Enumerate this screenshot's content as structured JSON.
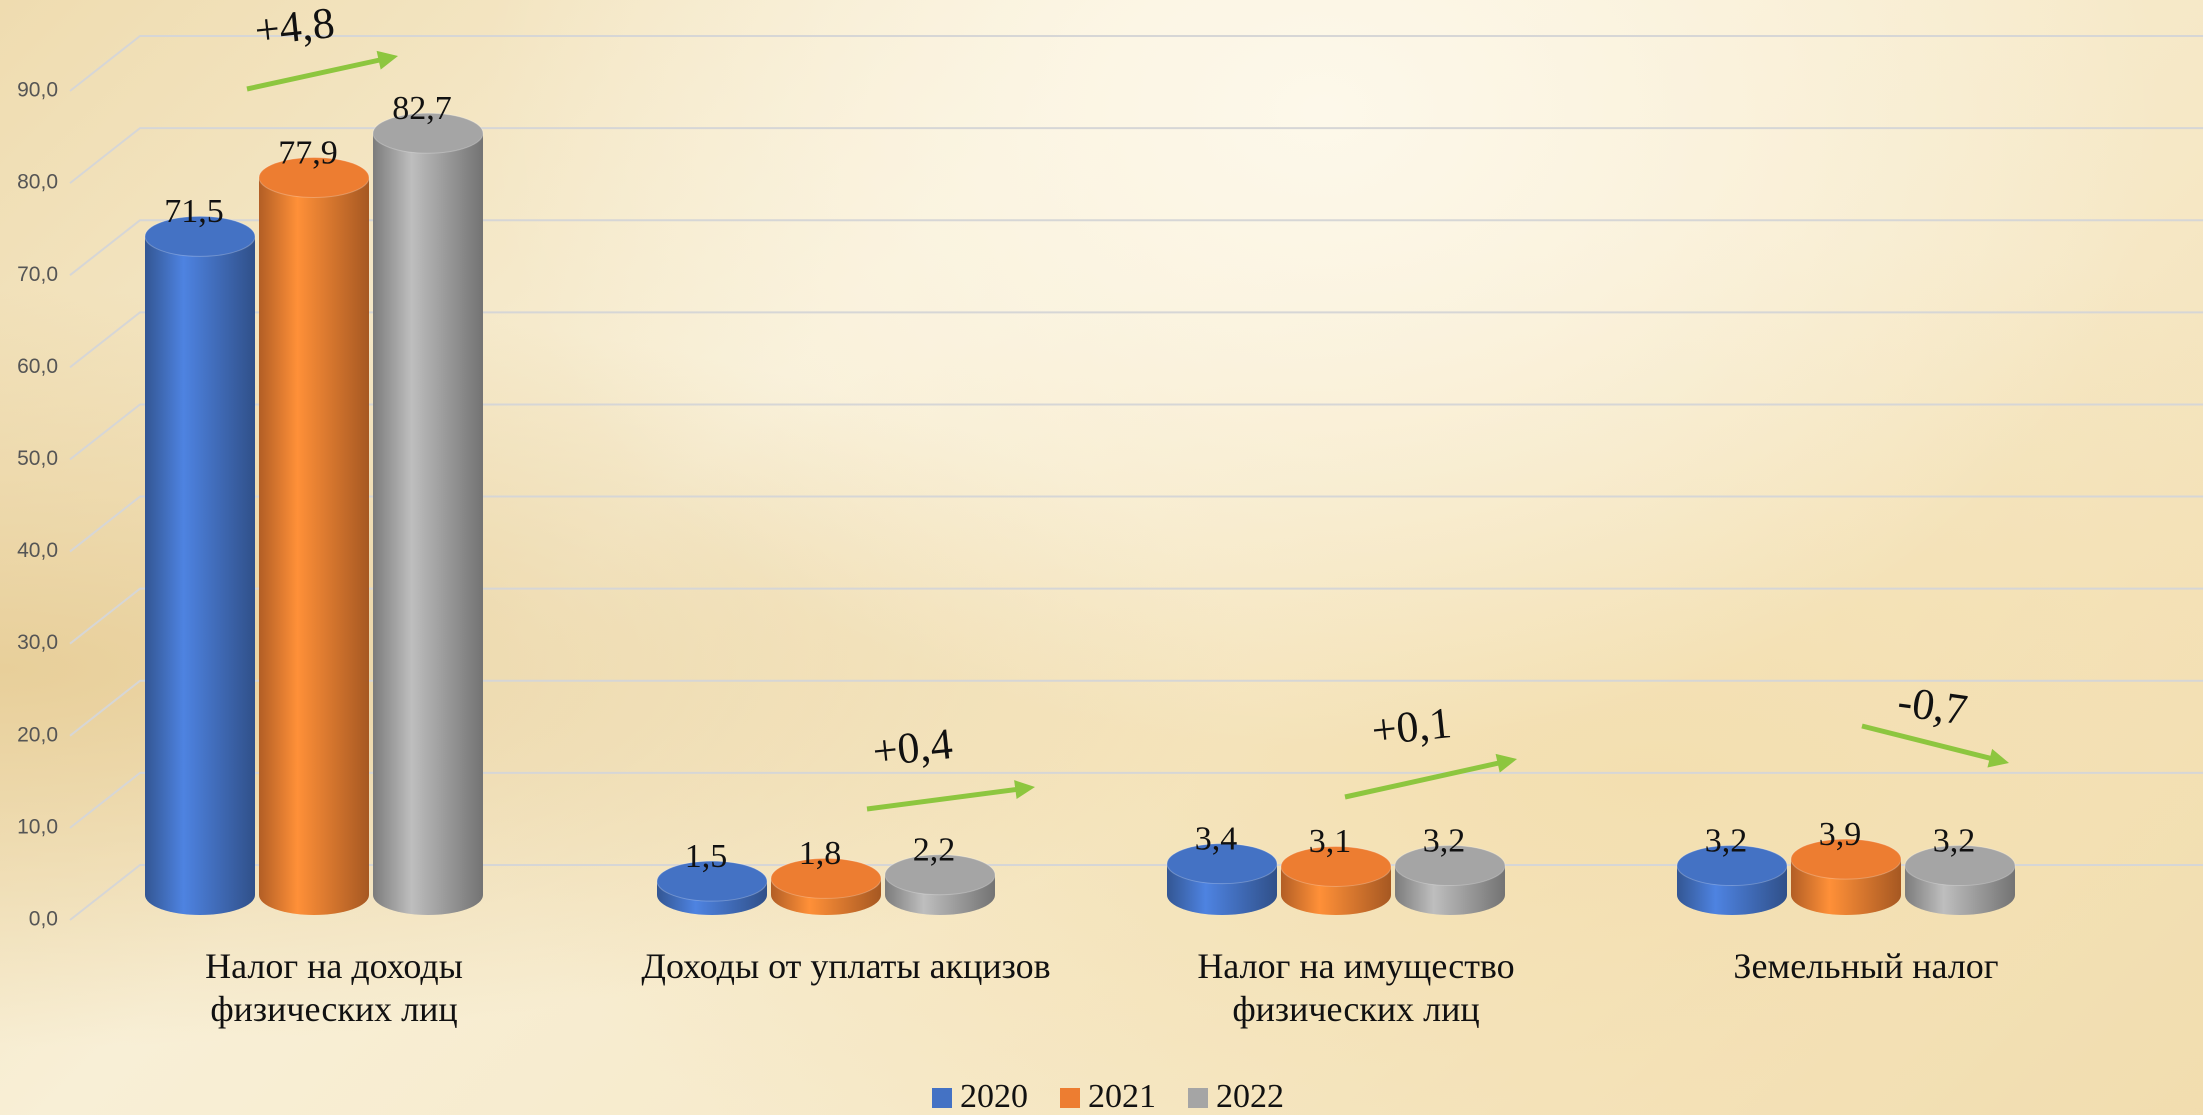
{
  "chart_data": {
    "type": "bar3d",
    "categories": [
      "Налог на доходы\nфизических лиц",
      "Доходы от уплаты акцизов",
      "Налог на имущество\nфизических лиц",
      "Земельный налог"
    ],
    "series": [
      {
        "name": "2020",
        "color": "#4472c4",
        "values": [
          71.5,
          1.5,
          3.4,
          3.2
        ],
        "value_labels": [
          "71,5",
          "1,5",
          "3,4",
          "3,2"
        ]
      },
      {
        "name": "2021",
        "color": "#ed7d31",
        "values": [
          77.9,
          1.8,
          3.1,
          3.9
        ],
        "value_labels": [
          "77,9",
          "1,8",
          "3,1",
          "3,9"
        ]
      },
      {
        "name": "2022",
        "color": "#a5a5a5",
        "values": [
          82.7,
          2.2,
          3.2,
          3.2
        ],
        "value_labels": [
          "82,7",
          "2,2",
          "3,2",
          "3,2"
        ]
      }
    ],
    "annotations": [
      "+4,8",
      "+0,4",
      "+0,1",
      "-0,7"
    ],
    "ylim": [
      0,
      90
    ],
    "yticks": [
      {
        "value": 0,
        "label": "0,0"
      },
      {
        "value": 10,
        "label": "10,0"
      },
      {
        "value": 20,
        "label": "20,0"
      },
      {
        "value": 30,
        "label": "30,0"
      },
      {
        "value": 40,
        "label": "40,0"
      },
      {
        "value": 50,
        "label": "50,0"
      },
      {
        "value": 60,
        "label": "60,0"
      },
      {
        "value": 70,
        "label": "70,0"
      },
      {
        "value": 80,
        "label": "80,0"
      },
      {
        "value": 90,
        "label": "90,0"
      }
    ],
    "grid": true,
    "legend": "bottom"
  }
}
